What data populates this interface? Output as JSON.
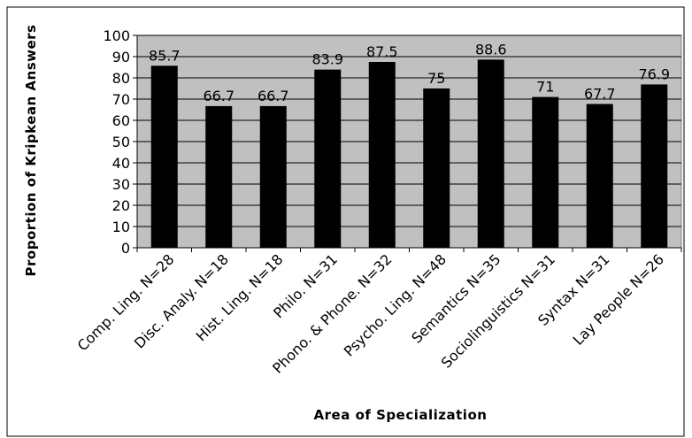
{
  "chart_data": {
    "type": "bar",
    "categories": [
      "Comp. Ling. N=28",
      "Disc. Analy. N=18",
      "Hist. Ling. N=18",
      "Philo. N=31",
      "Phono. & Phone. N=32",
      "Psycho. Ling. N=48",
      "Semantics N=35",
      "Sociolinguistics N=31",
      "Syntax N=31",
      "Lay People N=26"
    ],
    "values": [
      85.7,
      66.7,
      66.7,
      83.9,
      87.5,
      75,
      88.6,
      71,
      67.7,
      76.9
    ],
    "data_labels": [
      "85.7",
      "66.7",
      "66.7",
      "83.9",
      "87.5",
      "75",
      "88.6",
      "71",
      "67.7",
      "76.9"
    ],
    "xlabel": "Area of Specialization",
    "ylabel": "Proportion of Kripkean Answers",
    "ylim": [
      0,
      100
    ],
    "yticks": [
      0,
      10,
      20,
      30,
      40,
      50,
      60,
      70,
      80,
      90,
      100
    ],
    "grid": true,
    "legend": "none",
    "colors": {
      "bar": "#000000",
      "plot_background": "#c0c0c0",
      "gridline": "#000000",
      "frame": "#000000"
    }
  }
}
